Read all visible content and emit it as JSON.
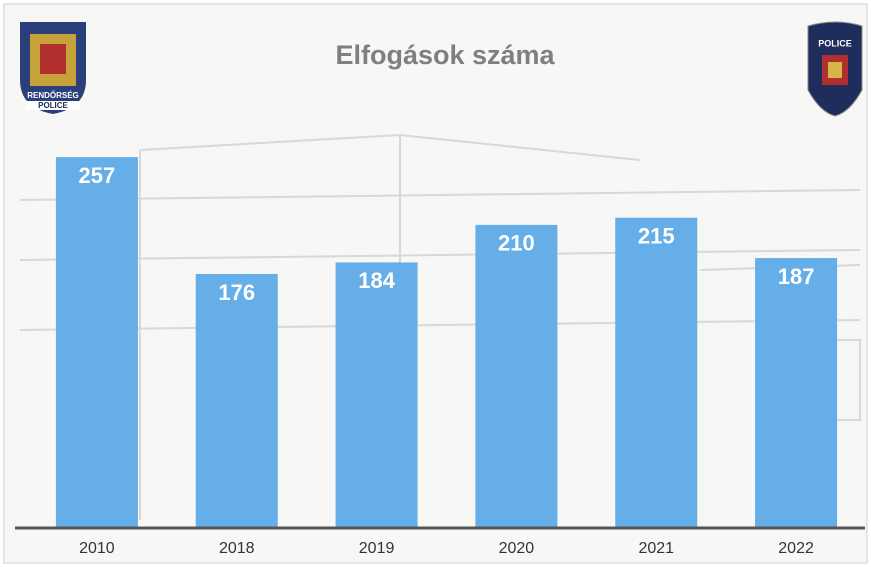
{
  "chart_data": {
    "type": "bar",
    "title": "Elfogások száma",
    "categories": [
      "2010",
      "2018",
      "2019",
      "2020",
      "2021",
      "2022"
    ],
    "values": [
      257,
      176,
      184,
      210,
      215,
      187
    ],
    "color": "#66aee8",
    "ylim": [
      0,
      300
    ]
  },
  "left_badge": {
    "top": "RENDŐRSÉG",
    "bottom": "POLICE"
  },
  "right_badge": {
    "top": "POLICE"
  }
}
